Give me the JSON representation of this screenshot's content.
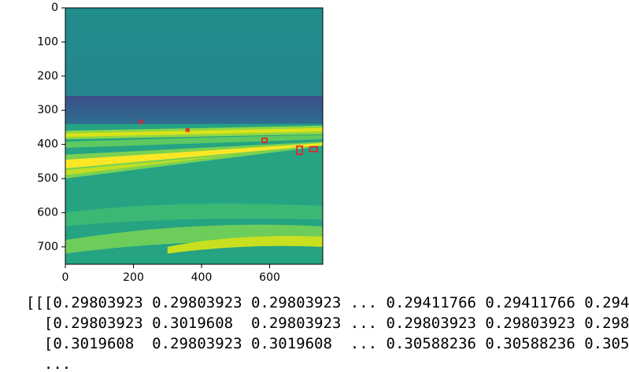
{
  "chart_data": {
    "type": "image",
    "xlim": [
      0,
      756
    ],
    "ylim": [
      751,
      0
    ],
    "xticks": [
      0,
      200,
      400,
      600
    ],
    "yticks": [
      0,
      100,
      200,
      300,
      400,
      500,
      600,
      700
    ],
    "box_color": "#e8202a",
    "boxes": [
      [
        218,
        330,
        8,
        8
      ],
      [
        355,
        355,
        8,
        6
      ],
      [
        578,
        382,
        14,
        12
      ],
      [
        680,
        405,
        16,
        24
      ],
      [
        718,
        407,
        22,
        14
      ]
    ]
  },
  "output": {
    "lines": [
      "[[[0.29803923 0.29803923 0.29803923 ... 0.29411766 0.29411766 0.294",
      "  [0.29803923 0.3019608  0.29803923 ... 0.29803923 0.29803923 0.298",
      "  [0.3019608  0.29803923 0.3019608  ... 0.30588236 0.30588236 0.305",
      "  ..."
    ]
  }
}
